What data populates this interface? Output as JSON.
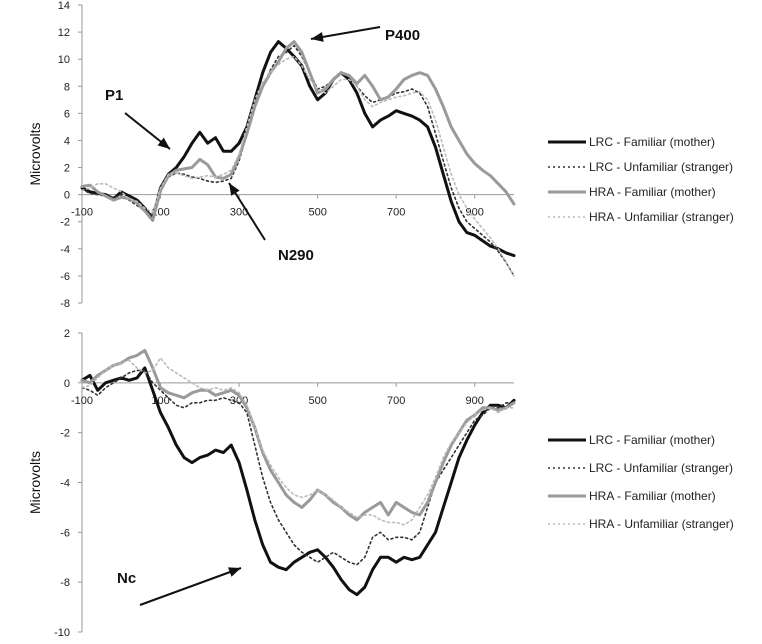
{
  "chart_data": [
    {
      "type": "line",
      "title": "",
      "xlabel": "",
      "ylabel": "Microvolts",
      "xlim": [
        -100,
        1000
      ],
      "ylim": [
        -8,
        14
      ],
      "x_ticks": [
        -100,
        100,
        300,
        500,
        700,
        900
      ],
      "y_ticks": [
        14,
        12,
        10,
        8,
        6,
        4,
        2,
        0,
        -2,
        -4,
        -6,
        -8
      ],
      "grid": false,
      "legend_position": "right",
      "annotations": [
        {
          "text": "P1",
          "x": 175,
          "y": 2.0
        },
        {
          "text": "N290",
          "x": 280,
          "y": 1.2
        },
        {
          "text": "P400",
          "x": 460,
          "y": 11.4
        }
      ],
      "series": [
        {
          "name": "LRC - Familiar (mother)",
          "style": "solid-thick",
          "color": "#111111",
          "x": [
            -100,
            -80,
            -60,
            -40,
            -20,
            0,
            20,
            40,
            60,
            80,
            100,
            120,
            140,
            160,
            180,
            200,
            220,
            240,
            260,
            280,
            300,
            320,
            340,
            360,
            380,
            400,
            420,
            440,
            460,
            480,
            500,
            520,
            540,
            560,
            580,
            600,
            620,
            640,
            660,
            680,
            700,
            720,
            740,
            760,
            780,
            800,
            820,
            840,
            860,
            880,
            900,
            920,
            940,
            960,
            980,
            1000
          ],
          "y": [
            0.5,
            0.2,
            0.1,
            0.0,
            -0.3,
            0.2,
            -0.1,
            -0.4,
            -1.0,
            -1.8,
            0.5,
            1.5,
            2.0,
            2.8,
            3.8,
            4.6,
            3.8,
            4.2,
            3.2,
            3.2,
            3.8,
            5.0,
            7.0,
            9.0,
            10.5,
            11.3,
            10.8,
            10.2,
            9.5,
            8.0,
            7.0,
            7.5,
            8.5,
            9.0,
            8.5,
            7.5,
            6.0,
            5.0,
            5.5,
            5.8,
            6.2,
            6.0,
            5.8,
            5.5,
            5.0,
            3.5,
            1.5,
            -0.5,
            -2.0,
            -2.8,
            -3.0,
            -3.4,
            -3.8,
            -4.0,
            -4.3,
            -4.5
          ]
        },
        {
          "name": "LRC - Unfamiliar (stranger)",
          "style": "dotted",
          "color": "#333333",
          "x": [
            -100,
            -80,
            -60,
            -40,
            -20,
            0,
            20,
            40,
            60,
            80,
            100,
            120,
            140,
            160,
            180,
            200,
            220,
            240,
            260,
            280,
            300,
            320,
            340,
            360,
            380,
            400,
            420,
            440,
            460,
            480,
            500,
            520,
            540,
            560,
            580,
            600,
            620,
            640,
            660,
            680,
            700,
            720,
            740,
            760,
            780,
            800,
            820,
            840,
            860,
            880,
            900,
            920,
            940,
            960,
            980,
            1000
          ],
          "y": [
            0.4,
            0.1,
            0.0,
            -0.1,
            -0.2,
            0.0,
            -0.4,
            -0.8,
            -1.2,
            -1.5,
            0.3,
            1.3,
            1.6,
            1.5,
            1.3,
            1.2,
            1.0,
            0.9,
            1.0,
            1.2,
            2.5,
            4.5,
            6.5,
            8.0,
            9.2,
            10.2,
            10.5,
            11.0,
            10.2,
            9.0,
            7.8,
            8.0,
            8.5,
            9.0,
            8.8,
            8.0,
            7.3,
            6.8,
            7.0,
            7.2,
            7.5,
            7.6,
            7.8,
            7.5,
            6.5,
            4.5,
            2.5,
            0.5,
            -1.0,
            -2.0,
            -2.5,
            -3.0,
            -3.5,
            -4.2,
            -5.0,
            -6.0
          ]
        },
        {
          "name": "HRA - Familiar (mother)",
          "style": "solid-thick",
          "color": "#9a9a9a",
          "x": [
            -100,
            -80,
            -60,
            -40,
            -20,
            0,
            20,
            40,
            60,
            80,
            100,
            120,
            140,
            160,
            180,
            200,
            220,
            240,
            260,
            280,
            300,
            320,
            340,
            360,
            380,
            400,
            420,
            440,
            460,
            480,
            500,
            520,
            540,
            560,
            580,
            600,
            620,
            640,
            660,
            680,
            700,
            720,
            740,
            760,
            780,
            800,
            820,
            840,
            860,
            880,
            900,
            920,
            940,
            960,
            980,
            1000
          ],
          "y": [
            0.6,
            0.7,
            0.2,
            -0.1,
            -0.4,
            -0.2,
            -0.3,
            -0.6,
            -1.2,
            -1.9,
            0.3,
            1.4,
            1.8,
            1.9,
            2.0,
            2.6,
            2.2,
            1.3,
            1.2,
            1.5,
            2.8,
            4.5,
            6.5,
            8.0,
            9.0,
            9.8,
            10.8,
            11.3,
            10.5,
            9.0,
            7.5,
            7.8,
            8.5,
            9.0,
            8.8,
            8.2,
            8.8,
            8.0,
            7.0,
            7.2,
            7.8,
            8.5,
            8.8,
            9.0,
            8.8,
            7.8,
            6.5,
            5.0,
            4.0,
            3.0,
            2.3,
            1.8,
            1.4,
            0.8,
            0.2,
            -0.7
          ]
        },
        {
          "name": "HRA - Unfamiliar (stranger)",
          "style": "dotted",
          "color": "#bbbbbb",
          "x": [
            -100,
            -80,
            -60,
            -40,
            -20,
            0,
            20,
            40,
            60,
            80,
            100,
            120,
            140,
            160,
            180,
            200,
            220,
            240,
            260,
            280,
            300,
            320,
            340,
            360,
            380,
            400,
            420,
            440,
            460,
            480,
            500,
            520,
            540,
            560,
            580,
            600,
            620,
            640,
            660,
            680,
            700,
            720,
            740,
            760,
            780,
            800,
            820,
            840,
            860,
            880,
            900,
            920,
            940,
            960,
            980,
            1000
          ],
          "y": [
            0.3,
            0.5,
            0.8,
            0.8,
            0.5,
            0.2,
            -0.3,
            -0.5,
            -1.0,
            -1.3,
            0.5,
            1.5,
            1.6,
            1.4,
            1.2,
            1.3,
            1.4,
            1.3,
            1.5,
            1.8,
            3.0,
            5.0,
            7.0,
            8.3,
            9.0,
            9.6,
            10.0,
            10.2,
            9.5,
            8.5,
            7.8,
            7.5,
            8.0,
            8.5,
            8.5,
            8.0,
            7.0,
            6.5,
            6.8,
            7.0,
            7.2,
            7.3,
            7.5,
            7.6,
            7.0,
            5.5,
            3.5,
            1.5,
            0.0,
            -1.0,
            -1.8,
            -2.5,
            -3.2,
            -4.0,
            -5.0,
            -6.0
          ]
        }
      ]
    },
    {
      "type": "line",
      "title": "",
      "xlabel": "",
      "ylabel": "Microvolts",
      "xlim": [
        -100,
        1000
      ],
      "ylim": [
        -10,
        2
      ],
      "x_ticks": [
        -100,
        100,
        300,
        500,
        700,
        900
      ],
      "y_ticks": [
        2,
        0,
        -2,
        -4,
        -6,
        -8,
        -10
      ],
      "grid": false,
      "legend_position": "right",
      "annotations": [
        {
          "text": "Nc",
          "x": 80,
          "y": -8.5
        }
      ],
      "series": [
        {
          "name": "LRC - Familiar (mother)",
          "style": "solid-thick",
          "color": "#111111",
          "x": [
            -100,
            -80,
            -60,
            -40,
            -20,
            0,
            20,
            40,
            60,
            80,
            100,
            120,
            140,
            160,
            180,
            200,
            220,
            240,
            260,
            280,
            300,
            320,
            340,
            360,
            380,
            400,
            420,
            440,
            460,
            480,
            500,
            520,
            540,
            560,
            580,
            600,
            620,
            640,
            660,
            680,
            700,
            720,
            740,
            760,
            780,
            800,
            820,
            840,
            860,
            880,
            900,
            920,
            940,
            960,
            980,
            1000
          ],
          "y": [
            0.1,
            0.3,
            -0.3,
            0.0,
            0.1,
            0.2,
            0.1,
            0.2,
            0.6,
            -0.3,
            -1.2,
            -1.8,
            -2.5,
            -3.0,
            -3.2,
            -3.0,
            -2.9,
            -2.7,
            -2.8,
            -2.5,
            -3.2,
            -4.3,
            -5.5,
            -6.5,
            -7.2,
            -7.4,
            -7.5,
            -7.2,
            -7.0,
            -6.8,
            -6.7,
            -7.0,
            -7.4,
            -7.9,
            -8.3,
            -8.5,
            -8.2,
            -7.5,
            -7.0,
            -7.0,
            -7.2,
            -7.0,
            -7.1,
            -7.0,
            -6.5,
            -6.0,
            -5.0,
            -4.0,
            -3.0,
            -2.3,
            -1.7,
            -1.2,
            -0.9,
            -0.9,
            -1.0,
            -0.7
          ]
        },
        {
          "name": "LRC - Unfamiliar (stranger)",
          "style": "dotted",
          "color": "#333333",
          "x": [
            -100,
            -80,
            -60,
            -40,
            -20,
            0,
            20,
            40,
            60,
            80,
            100,
            120,
            140,
            160,
            180,
            200,
            220,
            240,
            260,
            280,
            300,
            320,
            340,
            360,
            380,
            400,
            420,
            440,
            460,
            480,
            500,
            520,
            540,
            560,
            580,
            600,
            620,
            640,
            660,
            680,
            700,
            720,
            740,
            760,
            780,
            800,
            820,
            840,
            860,
            880,
            900,
            920,
            940,
            960,
            980,
            1000
          ],
          "y": [
            -0.2,
            -0.3,
            -0.5,
            -0.2,
            0.0,
            0.2,
            0.4,
            0.5,
            0.5,
            0.0,
            -0.3,
            -0.6,
            -0.9,
            -1.0,
            -0.8,
            -0.8,
            -0.7,
            -0.7,
            -0.6,
            -0.7,
            -0.8,
            -1.2,
            -2.5,
            -3.8,
            -4.8,
            -5.5,
            -6.0,
            -6.5,
            -6.8,
            -7.0,
            -7.2,
            -7.0,
            -6.8,
            -7.0,
            -7.2,
            -7.3,
            -7.0,
            -6.2,
            -6.0,
            -6.3,
            -6.2,
            -6.2,
            -6.3,
            -6.0,
            -5.0,
            -4.0,
            -3.5,
            -3.0,
            -2.5,
            -2.0,
            -1.5,
            -1.3,
            -1.0,
            -1.0,
            -0.8,
            -0.8
          ]
        },
        {
          "name": "HRA - Familiar (mother)",
          "style": "solid-thick",
          "color": "#9a9a9a",
          "x": [
            -100,
            -80,
            -60,
            -40,
            -20,
            0,
            20,
            40,
            60,
            80,
            100,
            120,
            140,
            160,
            180,
            200,
            220,
            240,
            260,
            280,
            300,
            320,
            340,
            360,
            380,
            400,
            420,
            440,
            460,
            480,
            500,
            520,
            540,
            560,
            580,
            600,
            620,
            640,
            660,
            680,
            700,
            720,
            740,
            760,
            780,
            800,
            820,
            840,
            860,
            880,
            900,
            920,
            940,
            960,
            980,
            1000
          ],
          "y": [
            0.1,
            0.0,
            0.3,
            0.5,
            0.7,
            0.8,
            1.0,
            1.1,
            1.3,
            0.6,
            -0.2,
            -0.4,
            -0.5,
            -0.6,
            -0.4,
            -0.3,
            -0.3,
            -0.5,
            -0.4,
            -0.3,
            -0.5,
            -1.0,
            -1.8,
            -2.8,
            -3.5,
            -4.0,
            -4.5,
            -4.8,
            -5.0,
            -4.7,
            -4.3,
            -4.5,
            -4.8,
            -5.0,
            -5.3,
            -5.5,
            -5.2,
            -5.0,
            -4.8,
            -5.3,
            -4.8,
            -5.0,
            -5.2,
            -5.3,
            -4.8,
            -4.0,
            -3.2,
            -2.5,
            -2.0,
            -1.5,
            -1.3,
            -1.0,
            -1.0,
            -1.1,
            -1.0,
            -0.8
          ]
        },
        {
          "name": "HRA - Unfamiliar (stranger)",
          "style": "dotted",
          "color": "#bbbbbb",
          "x": [
            -100,
            -80,
            -60,
            -40,
            -20,
            0,
            20,
            40,
            60,
            80,
            100,
            120,
            140,
            160,
            180,
            200,
            220,
            240,
            260,
            280,
            300,
            320,
            340,
            360,
            380,
            400,
            420,
            440,
            460,
            480,
            500,
            520,
            540,
            560,
            580,
            600,
            620,
            640,
            660,
            680,
            700,
            720,
            740,
            760,
            780,
            800,
            820,
            840,
            860,
            880,
            900,
            920,
            940,
            960,
            980,
            1000
          ],
          "y": [
            -0.2,
            -0.1,
            0.2,
            0.5,
            0.7,
            0.8,
            0.9,
            0.6,
            0.4,
            0.5,
            1.0,
            0.6,
            0.4,
            0.2,
            0.0,
            -0.2,
            -0.3,
            -0.2,
            -0.3,
            -0.2,
            -0.4,
            -0.9,
            -1.8,
            -2.7,
            -3.3,
            -3.8,
            -4.2,
            -4.5,
            -4.6,
            -4.5,
            -4.3,
            -4.5,
            -4.7,
            -5.0,
            -5.2,
            -5.4,
            -5.3,
            -5.3,
            -5.5,
            -5.6,
            -5.6,
            -5.7,
            -5.5,
            -5.0,
            -4.5,
            -3.8,
            -3.0,
            -2.4,
            -2.0,
            -1.6,
            -1.3,
            -1.1,
            -1.0,
            -1.2,
            -1.0,
            -1.0
          ]
        }
      ]
    }
  ]
}
